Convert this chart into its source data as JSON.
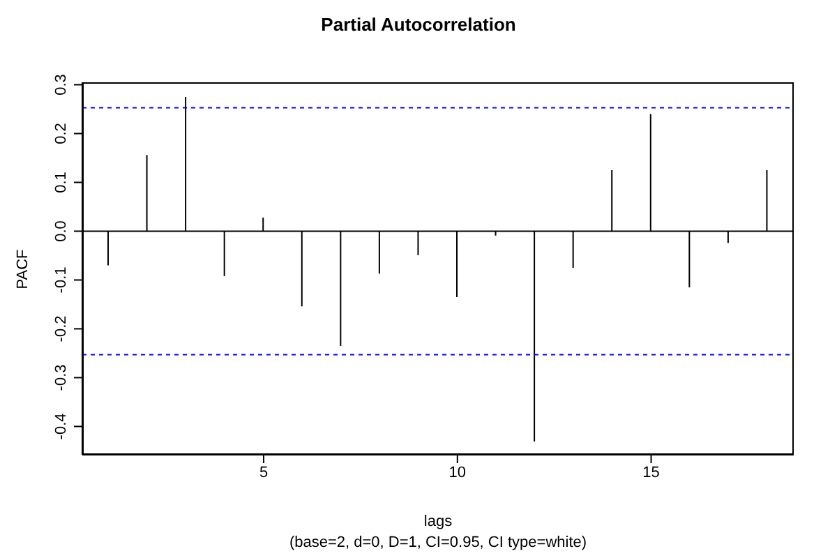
{
  "chart_data": {
    "type": "bar",
    "title": "Partial Autocorrelation",
    "subtitle": "(base=2, d=0, D=1, CI=0.95, CI type=white)",
    "xlabel": "lags",
    "ylabel": "PACF",
    "x": [
      1,
      2,
      3,
      4,
      5,
      6,
      7,
      8,
      9,
      10,
      11,
      12,
      13,
      14,
      15,
      16,
      17,
      18
    ],
    "values": [
      -0.07,
      0.156,
      0.275,
      -0.092,
      0.028,
      -0.154,
      -0.235,
      -0.087,
      -0.049,
      -0.135,
      -0.009,
      -0.431,
      -0.075,
      0.125,
      0.24,
      -0.115,
      -0.024,
      0.125
    ],
    "color": "#000000",
    "xlim": [
      0.32,
      18.68
    ],
    "xticks": [
      5,
      10,
      15
    ],
    "ylim": [
      -0.458,
      0.305
    ],
    "yticks": [
      -0.4,
      -0.3,
      -0.2,
      -0.1,
      {
        "value": 0,
        "label": "0.0"
      },
      0.1,
      0.2,
      0.3
    ],
    "ref_lines": [
      {
        "axis": "y",
        "value": 0,
        "color": "#000000",
        "line_style": "solid"
      },
      {
        "axis": "y",
        "value": 0.253,
        "color": "#0000ff",
        "line_style": "dashed"
      },
      {
        "axis": "y",
        "value": -0.253,
        "color": "#0000ff",
        "line_style": "dashed"
      }
    ],
    "grid": false,
    "legend": false
  }
}
